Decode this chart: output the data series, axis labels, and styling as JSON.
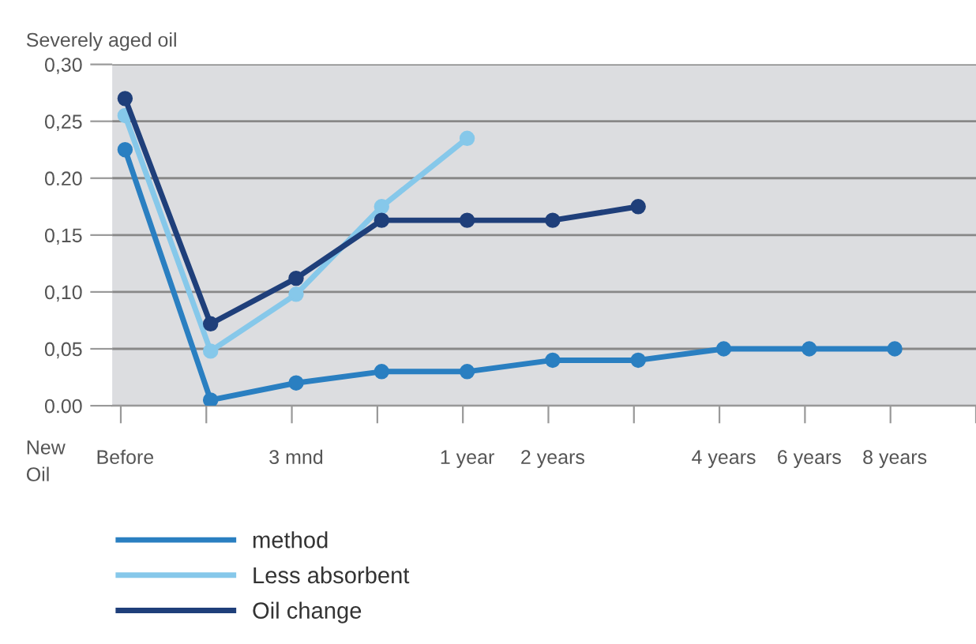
{
  "chart_data": {
    "type": "line",
    "ylabel": "Severely aged oil",
    "categories": [
      "Before",
      null,
      "3 mnd",
      null,
      "1 year",
      "2 years",
      null,
      "4 years",
      "6 years",
      "8 years"
    ],
    "series": [
      {
        "name": "method",
        "color": "#2a7fc1",
        "values": [
          0.225,
          0.005,
          0.02,
          0.03,
          0.03,
          0.04,
          0.04,
          0.05,
          0.05,
          0.05
        ]
      },
      {
        "name": "Less absorbent",
        "color": "#86c8ea",
        "values": [
          0.255,
          0.048,
          0.098,
          0.175,
          0.235,
          null,
          null,
          null,
          null,
          null
        ]
      },
      {
        "name": "Oil change",
        "color": "#1f3f7a",
        "values": [
          0.27,
          0.072,
          0.112,
          0.163,
          0.163,
          0.163,
          0.175,
          null,
          null,
          null
        ]
      }
    ],
    "ylim": [
      0,
      0.3
    ],
    "yticks": [
      {
        "value": 0,
        "label": "0.00"
      },
      {
        "value": 0.05,
        "label": "0,05"
      },
      {
        "value": 0.1,
        "label": "0,10"
      },
      {
        "value": 0.15,
        "label": "0,15"
      },
      {
        "value": 0.2,
        "label": "0.20"
      },
      {
        "value": 0.25,
        "label": "0,25"
      },
      {
        "value": 0.3,
        "label": "0,30"
      }
    ],
    "annotations": [
      "New\nOil"
    ],
    "grid": "y",
    "legend": "bottom",
    "marker": "circle",
    "line_style": "solid"
  }
}
